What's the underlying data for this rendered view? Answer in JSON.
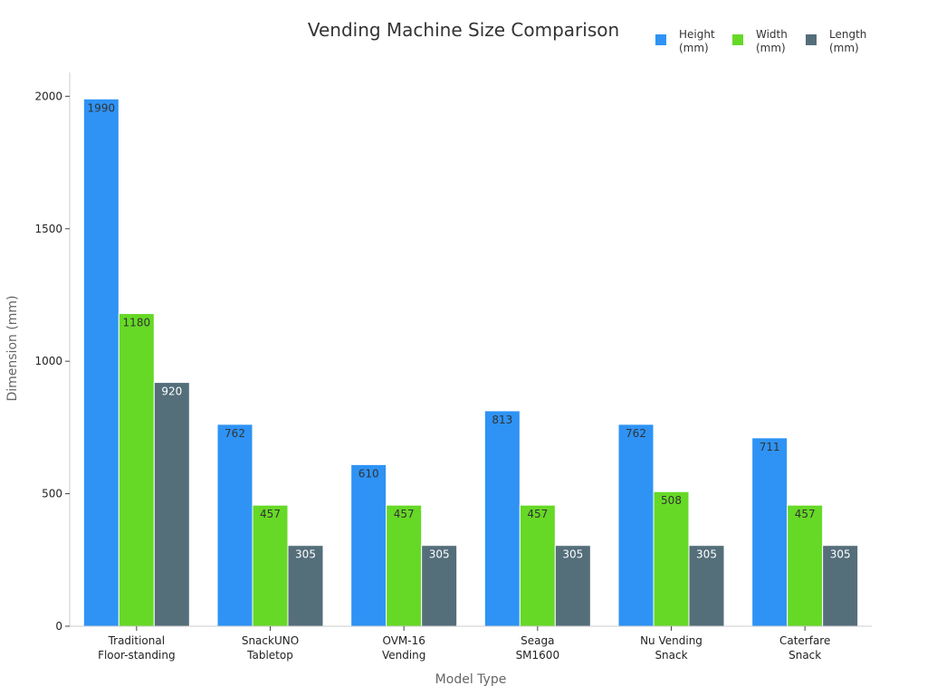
{
  "chart_data": {
    "type": "bar",
    "title": "Vending Machine Size Comparison",
    "xlabel": "Model Type",
    "ylabel": "Dimension (mm)",
    "ylim": [
      0,
      2090
    ],
    "yticks": [
      0,
      500,
      1000,
      1500,
      2000
    ],
    "categories": [
      [
        "Traditional",
        "Floor-standing"
      ],
      [
        "SnackUNO",
        "Tabletop"
      ],
      [
        "OVM-16",
        "Vending"
      ],
      [
        "Seaga",
        "SM1600"
      ],
      [
        "Nu Vending",
        "Snack"
      ],
      [
        "Caterfare",
        "Snack"
      ]
    ],
    "series": [
      {
        "name": [
          "Height",
          "(mm)"
        ],
        "color": "#2e93f5",
        "label_color": "#333333",
        "values": [
          1990,
          762,
          610,
          813,
          762,
          711
        ]
      },
      {
        "name": [
          "Width",
          "(mm)"
        ],
        "color": "#66d926",
        "label_color": "#333333",
        "values": [
          1180,
          457,
          457,
          457,
          508,
          457
        ]
      },
      {
        "name": [
          "Length",
          "(mm)"
        ],
        "color": "#546e7a",
        "label_color": "#ffffff",
        "values": [
          920,
          305,
          305,
          305,
          305,
          305
        ]
      }
    ],
    "legend_position": "top-right",
    "grid": false
  }
}
